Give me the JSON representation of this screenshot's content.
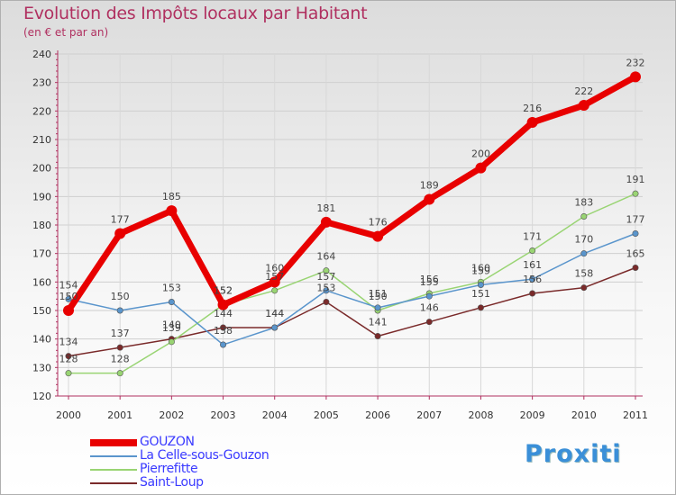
{
  "chart_data": {
    "type": "line",
    "title": "Evolution des Impôts locaux par Habitant",
    "subtitle": "(en € et par an)",
    "xlabel": "",
    "ylabel": "",
    "ylim": [
      120,
      240
    ],
    "yticks": [
      "120",
      "130",
      "140",
      "150",
      "160",
      "170",
      "180",
      "190",
      "200",
      "210",
      "220",
      "230",
      "240"
    ],
    "categories": [
      "2000",
      "2001",
      "2002",
      "2003",
      "2004",
      "2005",
      "2006",
      "2007",
      "2008",
      "2009",
      "2010",
      "2011"
    ],
    "series": [
      {
        "name": "GOUZON",
        "color": "#e80000",
        "values": [
          150,
          177,
          185,
          152,
          160,
          181,
          176,
          189,
          200,
          216,
          222,
          232
        ],
        "labels": [
          "150",
          "177",
          "185",
          "152",
          "160",
          "181",
          "176",
          "189",
          "200",
          "216",
          "222",
          "232"
        ]
      },
      {
        "name": "La Celle-sous-Gouzon",
        "color": "#5a95cc",
        "values": [
          154,
          150,
          153,
          138,
          144,
          157,
          151,
          155,
          159,
          161,
          170,
          177
        ],
        "labels": [
          "154",
          "150",
          "153",
          "138",
          "144",
          "157",
          "151",
          "155",
          "159",
          "161",
          "170",
          "177"
        ]
      },
      {
        "name": "Pierrefitte",
        "color": "#99d473",
        "values": [
          128,
          128,
          139,
          152,
          157,
          164,
          150,
          156,
          160,
          171,
          183,
          191
        ],
        "labels": [
          "128",
          "128",
          "139",
          "152",
          "157",
          "164",
          "150",
          "156",
          "160",
          "171",
          "183",
          "191"
        ]
      },
      {
        "name": "Saint-Loup",
        "color": "#7a2a2a",
        "values": [
          134,
          137,
          140,
          144,
          144,
          153,
          141,
          146,
          151,
          156,
          158,
          165
        ],
        "labels": [
          "134",
          "137",
          "140",
          "144",
          "144",
          "153",
          "141",
          "146",
          "151",
          "156",
          "158",
          "165"
        ]
      }
    ],
    "grid": true,
    "legend": "bottom-left"
  },
  "brand": "Proxiti",
  "colors": {
    "title": "#b03060",
    "legend_text": "#3a3aff"
  }
}
